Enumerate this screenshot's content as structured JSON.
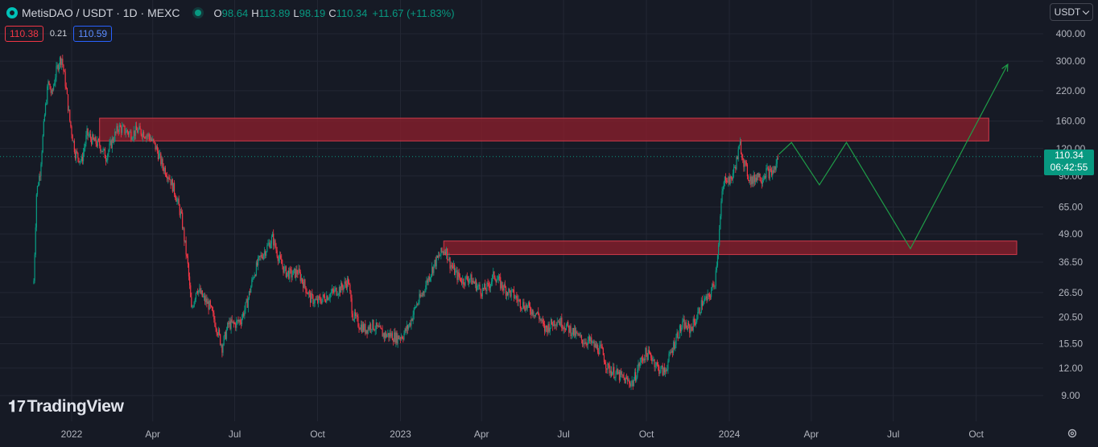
{
  "header": {
    "symbol": "MetisDAO / USDT · 1D · MEXC",
    "ohlc": [
      {
        "k": "O",
        "v": "98.64"
      },
      {
        "k": "H",
        "v": "113.89"
      },
      {
        "k": "L",
        "v": "98.19"
      },
      {
        "k": "C",
        "v": "110.34"
      }
    ],
    "change": "+11.67 (+11.83%)",
    "sell_price": "110.38",
    "spread": "0.21",
    "buy_price": "110.59",
    "currency": "USDT"
  },
  "last_price": {
    "price": "110.34",
    "countdown": "06:42:55"
  },
  "watermark": "TradingView",
  "colors": {
    "background": "#161a25",
    "up": "#089981",
    "down": "#f23645",
    "zone_fill": "#8b1f2c",
    "projection": "#1f9d48"
  },
  "icons": [
    "metis-logo-icon",
    "live-status-icon",
    "chevron-down-icon",
    "settings-gear-icon",
    "tradingview-logo-icon"
  ],
  "chart_data": {
    "type": "candlestick",
    "y_scale": "log",
    "y_ticks": [
      "400.00",
      "300.00",
      "220.00",
      "160.00",
      "120.00",
      "90.00",
      "65.00",
      "49.00",
      "36.50",
      "26.50",
      "20.50",
      "15.50",
      "12.00",
      "9.00"
    ],
    "x_ticks": [
      "2022",
      "Apr",
      "Jul",
      "Oct",
      "2023",
      "Apr",
      "Jul",
      "Oct",
      "2024",
      "Apr",
      "Jul",
      "Oct"
    ],
    "grid": true,
    "last_price": 110.34,
    "price_path": [
      [
        "2021-11-20",
        30
      ],
      [
        "2021-11-23",
        75
      ],
      [
        "2021-11-27",
        95
      ],
      [
        "2021-12-02",
        170
      ],
      [
        "2021-12-06",
        240
      ],
      [
        "2021-12-10",
        210
      ],
      [
        "2021-12-14",
        260
      ],
      [
        "2021-12-18",
        300
      ],
      [
        "2021-12-21",
        310
      ],
      [
        "2021-12-25",
        240
      ],
      [
        "2021-12-30",
        160
      ],
      [
        "2022-01-05",
        115
      ],
      [
        "2022-01-12",
        105
      ],
      [
        "2022-01-18",
        140
      ],
      [
        "2022-01-25",
        130
      ],
      [
        "2022-02-01",
        125
      ],
      [
        "2022-02-08",
        110
      ],
      [
        "2022-02-15",
        130
      ],
      [
        "2022-02-22",
        150
      ],
      [
        "2022-03-01",
        145
      ],
      [
        "2022-03-08",
        140
      ],
      [
        "2022-03-15",
        145
      ],
      [
        "2022-03-22",
        142
      ],
      [
        "2022-03-29",
        135
      ],
      [
        "2022-04-05",
        120
      ],
      [
        "2022-04-12",
        100
      ],
      [
        "2022-04-19",
        90
      ],
      [
        "2022-04-26",
        75
      ],
      [
        "2022-05-03",
        58
      ],
      [
        "2022-05-10",
        35
      ],
      [
        "2022-05-14",
        22
      ],
      [
        "2022-05-20",
        28
      ],
      [
        "2022-05-27",
        25
      ],
      [
        "2022-06-03",
        23
      ],
      [
        "2022-06-10",
        19
      ],
      [
        "2022-06-17",
        15
      ],
      [
        "2022-06-24",
        19
      ],
      [
        "2022-07-01",
        19
      ],
      [
        "2022-07-08",
        20
      ],
      [
        "2022-07-15",
        24
      ],
      [
        "2022-07-22",
        32
      ],
      [
        "2022-07-29",
        38
      ],
      [
        "2022-08-05",
        42
      ],
      [
        "2022-08-12",
        47
      ],
      [
        "2022-08-19",
        38
      ],
      [
        "2022-08-26",
        33
      ],
      [
        "2022-09-02",
        32
      ],
      [
        "2022-09-09",
        33
      ],
      [
        "2022-09-16",
        29
      ],
      [
        "2022-09-23",
        25
      ],
      [
        "2022-09-30",
        24
      ],
      [
        "2022-10-07",
        25
      ],
      [
        "2022-10-14",
        26
      ],
      [
        "2022-10-21",
        27
      ],
      [
        "2022-10-28",
        28
      ],
      [
        "2022-11-04",
        30
      ],
      [
        "2022-11-09",
        21
      ],
      [
        "2022-11-16",
        19
      ],
      [
        "2022-11-23",
        18
      ],
      [
        "2022-11-30",
        19
      ],
      [
        "2022-12-07",
        18
      ],
      [
        "2022-12-14",
        17
      ],
      [
        "2022-12-21",
        17
      ],
      [
        "2022-12-28",
        16.5
      ],
      [
        "2023-01-04",
        17
      ],
      [
        "2023-01-11",
        19
      ],
      [
        "2023-01-18",
        23
      ],
      [
        "2023-01-25",
        26
      ],
      [
        "2023-02-01",
        31
      ],
      [
        "2023-02-08",
        36
      ],
      [
        "2023-02-15",
        40
      ],
      [
        "2023-02-20",
        42
      ],
      [
        "2023-02-25",
        36
      ],
      [
        "2023-03-04",
        32
      ],
      [
        "2023-03-11",
        30
      ],
      [
        "2023-03-18",
        31
      ],
      [
        "2023-03-25",
        29
      ],
      [
        "2023-04-01",
        27
      ],
      [
        "2023-04-08",
        28
      ],
      [
        "2023-04-15",
        32
      ],
      [
        "2023-04-22",
        29
      ],
      [
        "2023-04-29",
        27
      ],
      [
        "2023-05-06",
        26
      ],
      [
        "2023-05-13",
        24
      ],
      [
        "2023-05-20",
        23
      ],
      [
        "2023-05-27",
        22
      ],
      [
        "2023-06-03",
        21
      ],
      [
        "2023-06-10",
        18
      ],
      [
        "2023-06-17",
        19
      ],
      [
        "2023-06-24",
        20
      ],
      [
        "2023-07-01",
        19
      ],
      [
        "2023-07-08",
        18
      ],
      [
        "2023-07-15",
        17
      ],
      [
        "2023-07-22",
        16
      ],
      [
        "2023-07-29",
        16
      ],
      [
        "2023-08-05",
        15
      ],
      [
        "2023-08-12",
        14.5
      ],
      [
        "2023-08-19",
        12
      ],
      [
        "2023-08-26",
        11.5
      ],
      [
        "2023-09-02",
        11
      ],
      [
        "2023-09-09",
        10.5
      ],
      [
        "2023-09-16",
        10.3
      ],
      [
        "2023-09-23",
        12.5
      ],
      [
        "2023-09-30",
        14
      ],
      [
        "2023-10-07",
        13.5
      ],
      [
        "2023-10-14",
        12
      ],
      [
        "2023-10-21",
        11.5
      ],
      [
        "2023-10-28",
        14
      ],
      [
        "2023-11-04",
        17
      ],
      [
        "2023-11-11",
        19
      ],
      [
        "2023-11-18",
        18
      ],
      [
        "2023-11-25",
        20
      ],
      [
        "2023-12-02",
        24
      ],
      [
        "2023-12-09",
        25
      ],
      [
        "2023-12-16",
        30
      ],
      [
        "2023-12-20",
        45
      ],
      [
        "2023-12-24",
        75
      ],
      [
        "2023-12-28",
        90
      ],
      [
        "2024-01-02",
        85
      ],
      [
        "2024-01-06",
        95
      ],
      [
        "2024-01-10",
        110
      ],
      [
        "2024-01-13",
        125
      ],
      [
        "2024-01-17",
        105
      ],
      [
        "2024-01-22",
        90
      ],
      [
        "2024-01-27",
        85
      ],
      [
        "2024-02-01",
        92
      ],
      [
        "2024-02-06",
        88
      ],
      [
        "2024-02-11",
        95
      ],
      [
        "2024-02-16",
        92
      ],
      [
        "2024-02-21",
        98
      ],
      [
        "2024-02-24",
        110.34
      ]
    ],
    "resistance_zones": [
      {
        "start": "2022-02-01",
        "end": "2024-10-15",
        "low": 130,
        "high": 165
      },
      {
        "start": "2023-02-18",
        "end": "2024-11-15",
        "low": 39.5,
        "high": 45.5
      }
    ],
    "projection_path": [
      [
        "2024-02-25",
        113
      ],
      [
        "2024-03-10",
        128
      ],
      [
        "2024-04-10",
        82
      ],
      [
        "2024-05-10",
        128
      ],
      [
        "2024-07-20",
        42
      ],
      [
        "2024-11-05",
        290
      ]
    ]
  }
}
